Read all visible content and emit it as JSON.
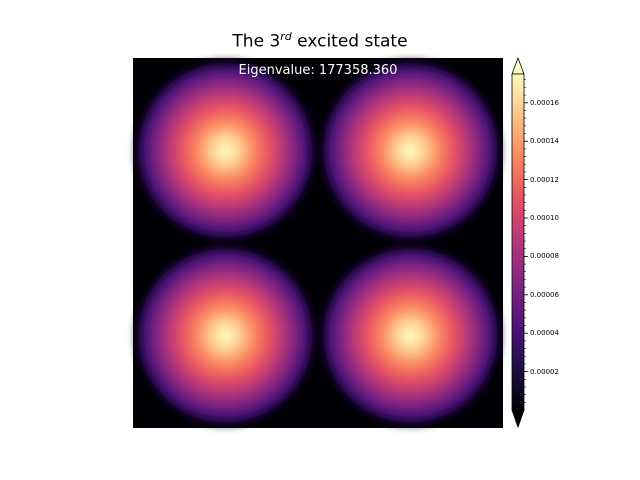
{
  "chart_data": {
    "type": "heatmap",
    "title_prefix": "The 3",
    "title_superscript": "rd",
    "title_suffix": " excited state",
    "annotation": "Eigenvalue: 177358.360",
    "colormap": "magma",
    "colorbar_extend": "both",
    "value_range": [
      0,
      0.000175
    ],
    "colorbar_ticks": [
      "0.00002",
      "0.00004",
      "0.00006",
      "0.00008",
      "0.00010",
      "0.00012",
      "0.00014",
      "0.00016"
    ],
    "colorbar_tick_values": [
      2e-05,
      4e-05,
      6e-05,
      8e-05,
      0.0001,
      0.00012,
      0.00014,
      0.00016
    ],
    "peaks": [
      {
        "x": 0.25,
        "y": 0.25,
        "value": 0.000175
      },
      {
        "x": 0.75,
        "y": 0.25,
        "value": 0.000175
      },
      {
        "x": 0.25,
        "y": 0.75,
        "value": 0.000175
      },
      {
        "x": 0.75,
        "y": 0.75,
        "value": 0.000175
      }
    ],
    "axes_visible": false
  }
}
